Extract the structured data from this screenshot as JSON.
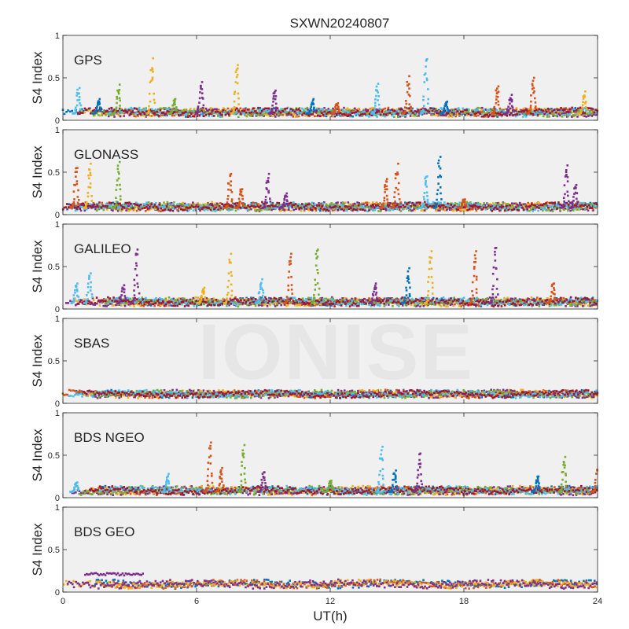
{
  "figure": {
    "title": "SXWN20240807",
    "xlabel": "UT(h)",
    "watermark": "IONISE"
  },
  "colors": {
    "panel_bg": "#f0f0f0",
    "axis": "#262626",
    "series": [
      "#0072BD",
      "#D95319",
      "#EDB120",
      "#7E2F8E",
      "#77AC30",
      "#4DBEEE",
      "#A2142F"
    ]
  },
  "chart_data": [
    {
      "type": "scatter",
      "label": "GPS",
      "ylabel": "S4 Index",
      "xlim": [
        0,
        24
      ],
      "ylim": [
        0,
        1
      ],
      "yticks": [
        0,
        0.5,
        1
      ],
      "xticks": [
        0,
        6,
        12,
        18,
        24
      ],
      "baseline": 0.08,
      "spikes": [
        [
          0.7,
          0.38,
          5
        ],
        [
          1.6,
          0.25,
          0
        ],
        [
          2.5,
          0.42,
          4
        ],
        [
          4.0,
          0.73,
          2
        ],
        [
          5.0,
          0.25,
          4
        ],
        [
          6.2,
          0.45,
          3
        ],
        [
          7.8,
          0.65,
          2
        ],
        [
          9.5,
          0.35,
          3
        ],
        [
          11.2,
          0.25,
          0
        ],
        [
          12.3,
          0.2,
          1
        ],
        [
          14.1,
          0.43,
          5
        ],
        [
          15.5,
          0.52,
          1
        ],
        [
          16.3,
          0.72,
          5
        ],
        [
          17.2,
          0.22,
          0
        ],
        [
          19.5,
          0.4,
          1
        ],
        [
          20.1,
          0.3,
          3
        ],
        [
          21.1,
          0.5,
          1
        ],
        [
          23.4,
          0.34,
          2
        ]
      ]
    },
    {
      "type": "scatter",
      "label": "GLONASS",
      "ylabel": "S4 Index",
      "xlim": [
        0,
        24
      ],
      "ylim": [
        0,
        1
      ],
      "yticks": [
        0,
        0.5,
        1
      ],
      "xticks": [
        0,
        6,
        12,
        18,
        24
      ],
      "baseline": 0.08,
      "spikes": [
        [
          0.6,
          0.55,
          1
        ],
        [
          1.2,
          0.6,
          2
        ],
        [
          2.5,
          0.62,
          4
        ],
        [
          7.5,
          0.48,
          1
        ],
        [
          8.0,
          0.3,
          1
        ],
        [
          9.2,
          0.48,
          3
        ],
        [
          10.0,
          0.25,
          3
        ],
        [
          14.5,
          0.42,
          1
        ],
        [
          15.0,
          0.6,
          1
        ],
        [
          16.3,
          0.45,
          5
        ],
        [
          16.9,
          0.68,
          0
        ],
        [
          18.0,
          0.18,
          1
        ],
        [
          22.6,
          0.58,
          3
        ],
        [
          23.0,
          0.35,
          3
        ]
      ]
    },
    {
      "type": "scatter",
      "label": "GALILEO",
      "ylabel": "S4 Index",
      "xlim": [
        0,
        24
      ],
      "ylim": [
        0,
        1
      ],
      "yticks": [
        0,
        0.5,
        1
      ],
      "xticks": [
        0,
        6,
        12,
        18,
        24
      ],
      "baseline": 0.07,
      "spikes": [
        [
          0.6,
          0.3,
          5
        ],
        [
          1.2,
          0.42,
          5
        ],
        [
          2.7,
          0.28,
          3
        ],
        [
          3.3,
          0.7,
          3
        ],
        [
          6.3,
          0.25,
          2
        ],
        [
          7.5,
          0.65,
          2
        ],
        [
          8.9,
          0.35,
          5
        ],
        [
          10.2,
          0.65,
          1
        ],
        [
          11.4,
          0.7,
          4
        ],
        [
          14.0,
          0.3,
          3
        ],
        [
          15.5,
          0.48,
          0
        ],
        [
          16.5,
          0.68,
          2
        ],
        [
          18.5,
          0.68,
          1
        ],
        [
          19.4,
          0.72,
          3
        ],
        [
          22.0,
          0.3,
          1
        ]
      ]
    },
    {
      "type": "scatter",
      "label": "SBAS",
      "ylabel": "S4 Index",
      "xlim": [
        0,
        24
      ],
      "ylim": [
        0,
        1
      ],
      "yticks": [
        0,
        0.5,
        1
      ],
      "xticks": [
        0,
        6,
        12,
        18,
        24
      ],
      "baseline": 0.11,
      "spikes": []
    },
    {
      "type": "scatter",
      "label": "BDS NGEO",
      "ylabel": "S4 Index",
      "xlim": [
        0,
        24
      ],
      "ylim": [
        0,
        1
      ],
      "yticks": [
        0,
        0.5,
        1
      ],
      "xticks": [
        0,
        6,
        12,
        18,
        24
      ],
      "baseline": 0.07,
      "spikes": [
        [
          0.6,
          0.18,
          5
        ],
        [
          4.7,
          0.28,
          5
        ],
        [
          6.6,
          0.65,
          1
        ],
        [
          7.1,
          0.35,
          1
        ],
        [
          8.1,
          0.62,
          4
        ],
        [
          9.0,
          0.3,
          3
        ],
        [
          12.0,
          0.2,
          4
        ],
        [
          14.3,
          0.6,
          5
        ],
        [
          14.9,
          0.32,
          0
        ],
        [
          16.0,
          0.52,
          3
        ],
        [
          21.3,
          0.25,
          0
        ],
        [
          22.5,
          0.48,
          4
        ],
        [
          24.0,
          0.38,
          1
        ]
      ]
    },
    {
      "type": "scatter",
      "label": "BDS GEO",
      "ylabel": "S4 Index",
      "xlim": [
        0,
        24
      ],
      "ylim": [
        0,
        1
      ],
      "yticks": [
        0,
        0.5,
        1
      ],
      "xticks": [
        0,
        6,
        12,
        18,
        24
      ],
      "baseline": 0.08,
      "spikes": [],
      "segment": {
        "x0": 1.0,
        "x1": 3.6,
        "y": 0.21,
        "color": 3
      }
    }
  ]
}
